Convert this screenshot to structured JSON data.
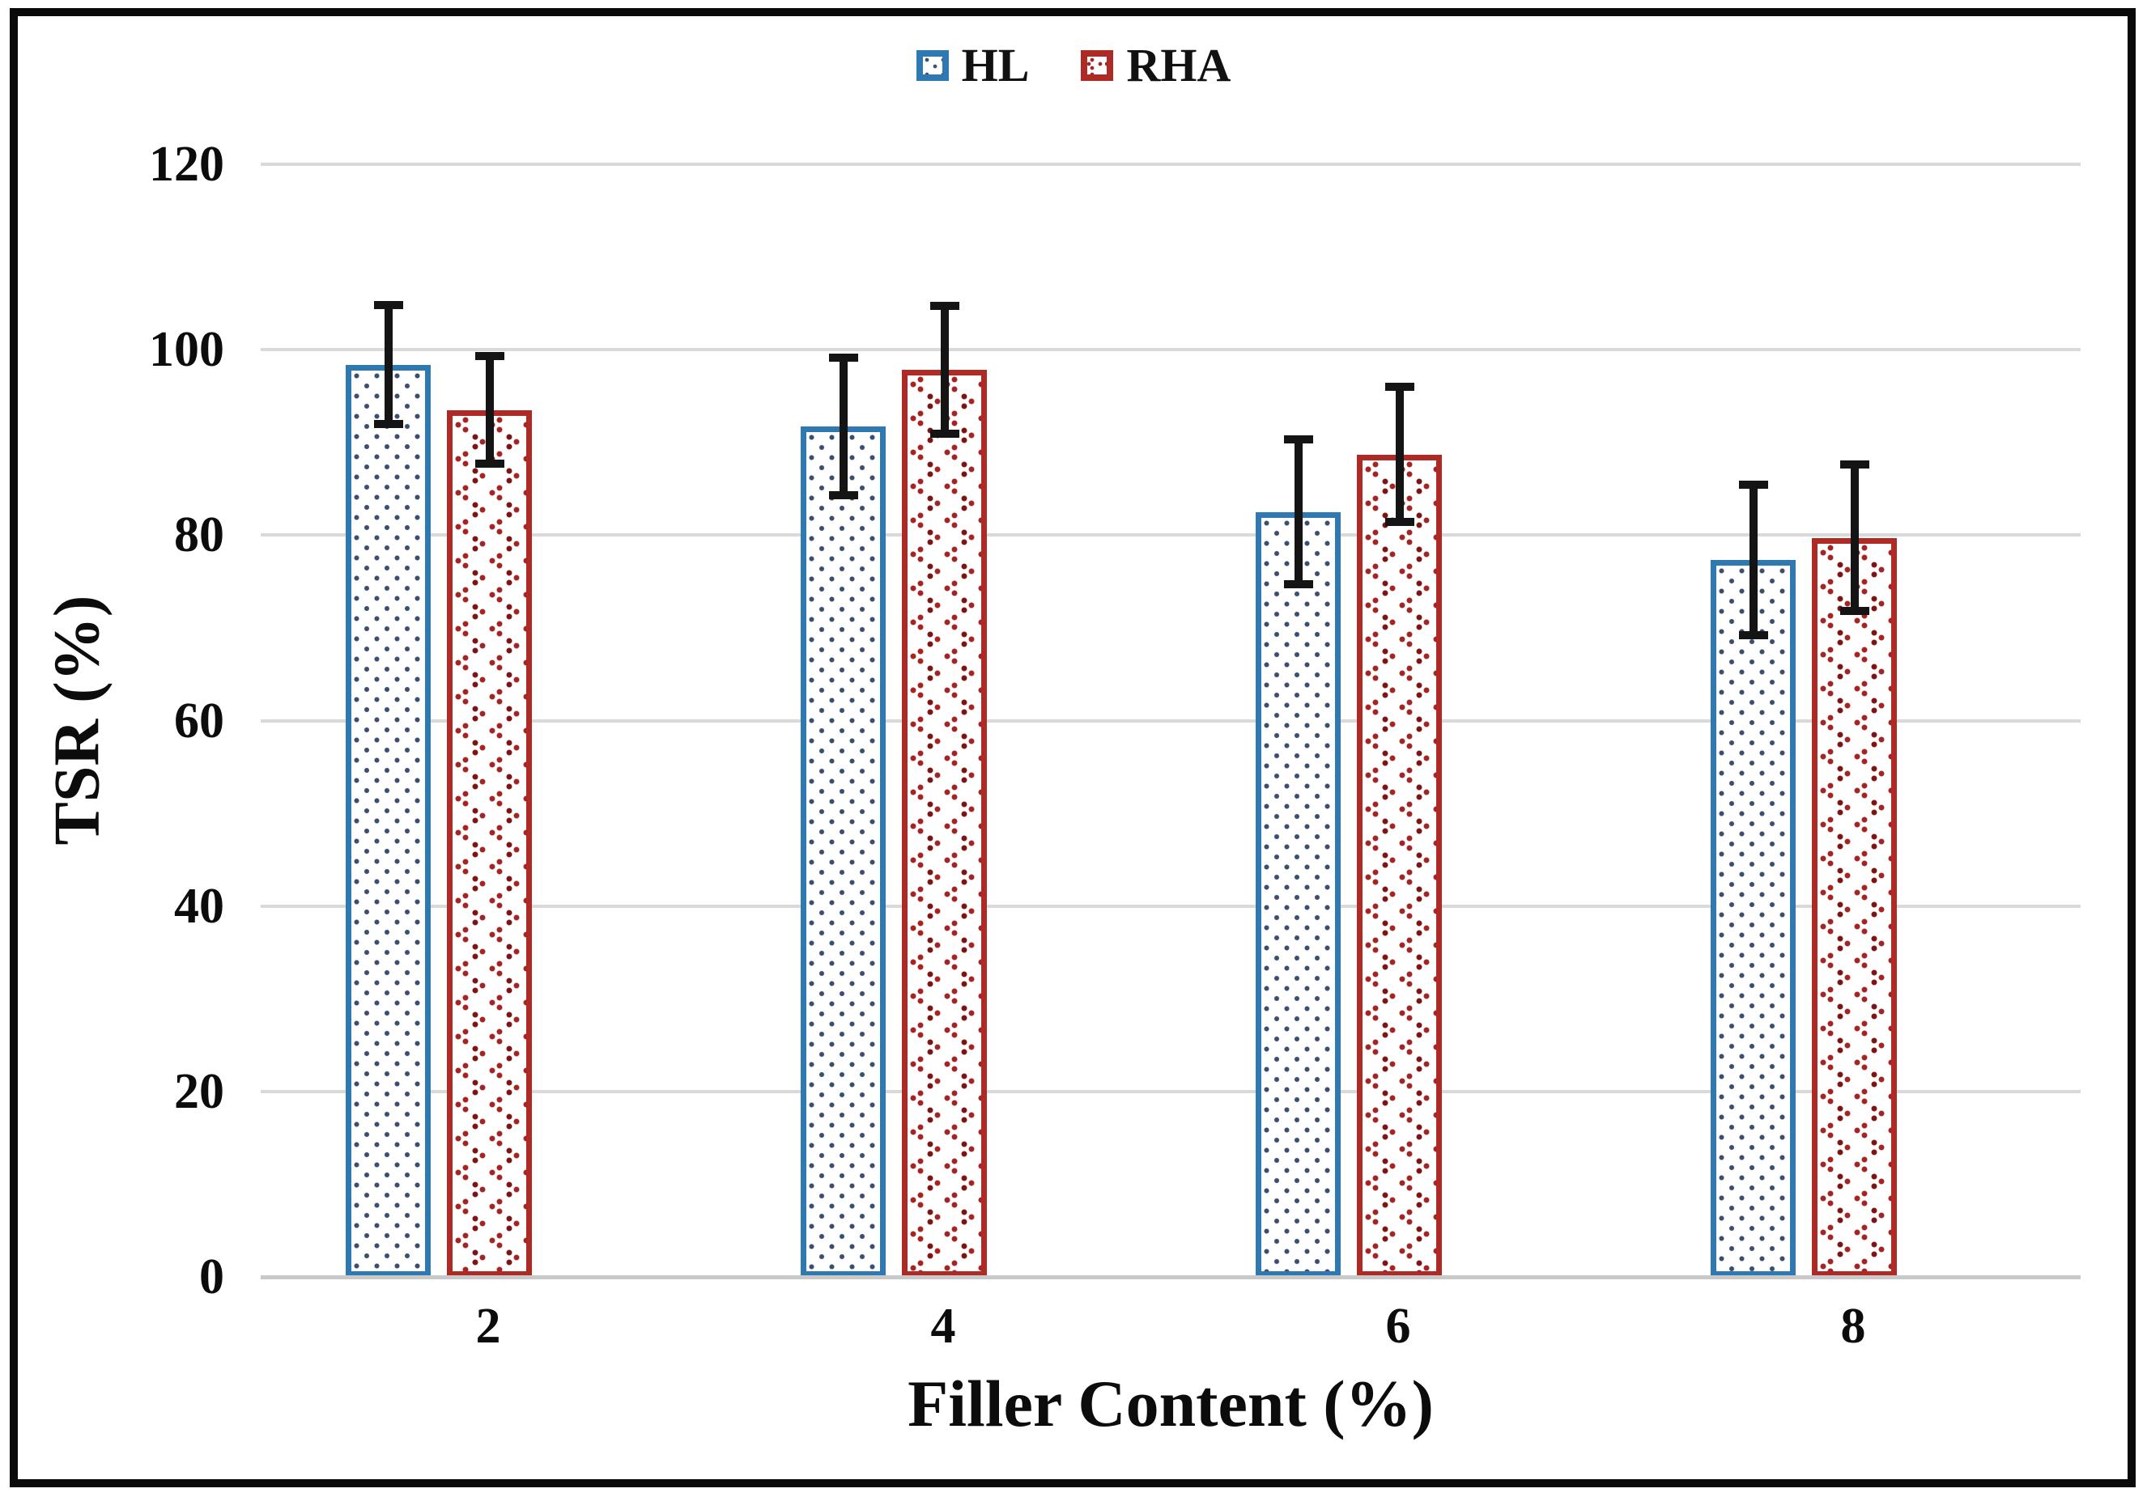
{
  "legend": {
    "items": [
      {
        "label": "HL"
      },
      {
        "label": "RHA"
      }
    ]
  },
  "chart_data": {
    "type": "bar",
    "title": "",
    "xlabel": "Filler Content (%)",
    "ylabel": "TSR (%)",
    "categories": [
      "2",
      "4",
      "6",
      "8"
    ],
    "series": [
      {
        "name": "HL",
        "color": "#2e79b2",
        "pattern": "dots",
        "values": [
          98.4,
          91.7,
          82.5,
          77.3
        ],
        "errors": [
          6.4,
          7.4,
          7.8,
          8.1
        ]
      },
      {
        "name": "RHA",
        "color": "#ae2b25",
        "pattern": "divot",
        "values": [
          93.5,
          97.8,
          88.7,
          79.7
        ],
        "errors": [
          5.8,
          6.9,
          7.3,
          7.9
        ]
      }
    ],
    "ylim": [
      0,
      120
    ],
    "yticks": [
      0,
      20,
      40,
      60,
      80,
      100,
      120
    ],
    "grid": "horizontal-on",
    "legend_position": "top-center",
    "error_bars": true,
    "gridline_color": "#d9d9d9",
    "error_bar_color": "#141414"
  }
}
